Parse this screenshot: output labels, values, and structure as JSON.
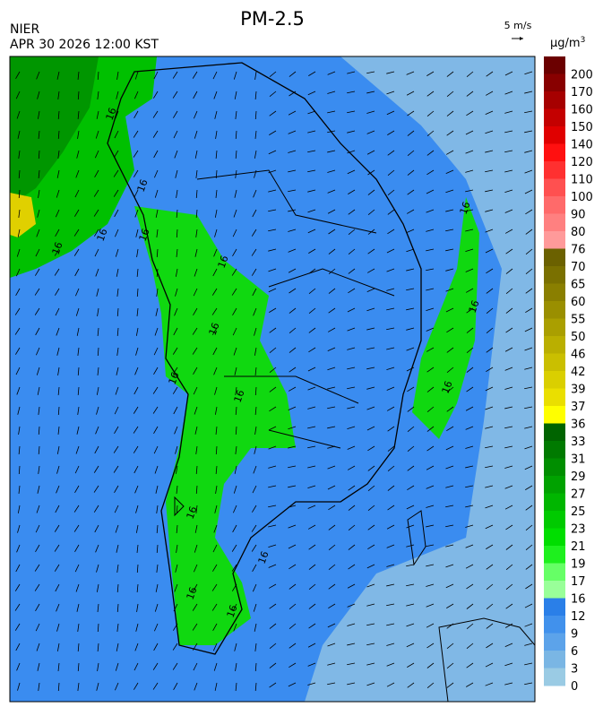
{
  "header": {
    "title": "PM-2.5",
    "agency": "NIER",
    "datetime": "APR 30 2026 12:00 KST",
    "wind_scale": "5 m/s",
    "unit": "μg/m",
    "unit_exp": "3"
  },
  "map": {
    "contour_label": "16"
  },
  "colorbar": {
    "levels": [
      {
        "label": "200",
        "color": "#6b0000"
      },
      {
        "label": "170",
        "color": "#880000"
      },
      {
        "label": "160",
        "color": "#a60000"
      },
      {
        "label": "150",
        "color": "#c40000"
      },
      {
        "label": "140",
        "color": "#e00000"
      },
      {
        "label": "120",
        "color": "#ff1010"
      },
      {
        "label": "110",
        "color": "#ff3030"
      },
      {
        "label": "100",
        "color": "#ff5050"
      },
      {
        "label": "90",
        "color": "#ff6a6a"
      },
      {
        "label": "80",
        "color": "#ff8080"
      },
      {
        "label": "76",
        "color": "#ff9a9a"
      },
      {
        "label": "70",
        "color": "#6b6100"
      },
      {
        "label": "65",
        "color": "#7a7000"
      },
      {
        "label": "60",
        "color": "#8a7f00"
      },
      {
        "label": "55",
        "color": "#9a8f00"
      },
      {
        "label": "50",
        "color": "#aa9f00"
      },
      {
        "label": "46",
        "color": "#baaf00"
      },
      {
        "label": "42",
        "color": "#cabf00"
      },
      {
        "label": "39",
        "color": "#dacf00"
      },
      {
        "label": "37",
        "color": "#eadf00"
      },
      {
        "label": "36",
        "color": "#ffff00"
      },
      {
        "label": "33",
        "color": "#006400"
      },
      {
        "label": "31",
        "color": "#007a00"
      },
      {
        "label": "29",
        "color": "#008e00"
      },
      {
        "label": "27",
        "color": "#00a200"
      },
      {
        "label": "25",
        "color": "#00b600"
      },
      {
        "label": "23",
        "color": "#00ca00"
      },
      {
        "label": "21",
        "color": "#00de00"
      },
      {
        "label": "19",
        "color": "#1ef01e"
      },
      {
        "label": "17",
        "color": "#66ff66"
      },
      {
        "label": "16",
        "color": "#99ff99"
      },
      {
        "label": "12",
        "color": "#2a7fe8"
      },
      {
        "label": "9",
        "color": "#4191ec"
      },
      {
        "label": "6",
        "color": "#5ca3ea"
      },
      {
        "label": "3",
        "color": "#7ab6e4"
      },
      {
        "label": "0",
        "color": "#9acbe4"
      }
    ]
  }
}
